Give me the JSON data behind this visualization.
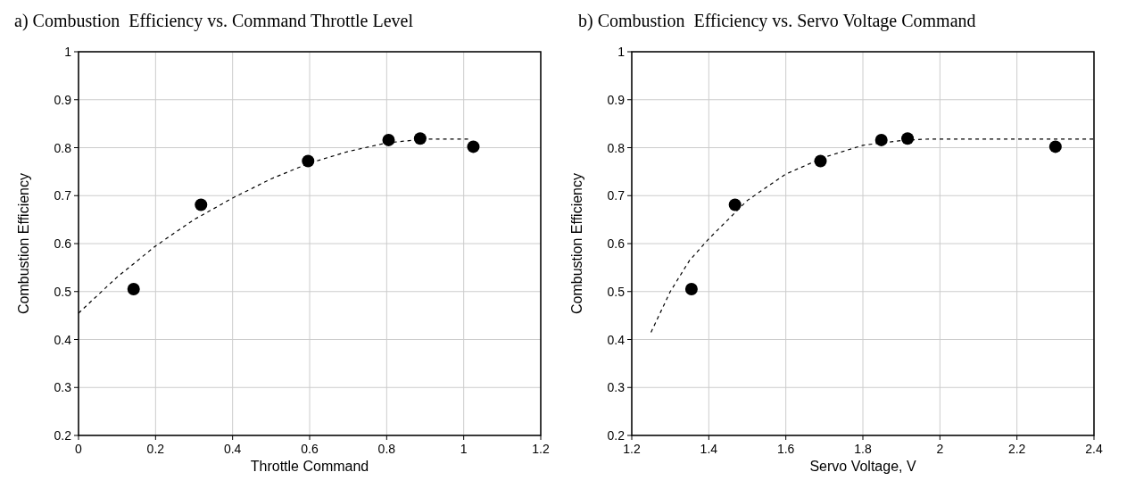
{
  "chart_data": [
    {
      "type": "scatter",
      "title": "a) Combustion  Efficiency vs. Command Throttle Level",
      "xlabel": "Throttle Command",
      "ylabel": "Combustion Efficiency",
      "xlim": [
        0,
        1.2
      ],
      "xticks": [
        0,
        0.2,
        0.4,
        0.6,
        0.8,
        1,
        1.2
      ],
      "ylim": [
        0.2,
        1
      ],
      "yticks": [
        0.2,
        0.3,
        0.4,
        0.5,
        0.6,
        0.7,
        0.8,
        0.9,
        1
      ],
      "grid": true,
      "series": [
        {
          "color": "#000000",
          "marker": "circle",
          "x": [
            0.143,
            0.318,
            0.596,
            0.805,
            0.887,
            1.025
          ],
          "values": [
            0.505,
            0.681,
            0.772,
            0.816,
            0.819,
            0.802
          ]
        },
        {
          "type": "line",
          "color": "#000000",
          "line_style": "dashed",
          "x": [
            0,
            0.1,
            0.2,
            0.3,
            0.4,
            0.5,
            0.6,
            0.7,
            0.8,
            0.9,
            1.02
          ],
          "values": [
            0.455,
            0.53,
            0.595,
            0.65,
            0.695,
            0.735,
            0.768,
            0.792,
            0.81,
            0.818,
            0.818
          ]
        }
      ]
    },
    {
      "type": "scatter",
      "title": "b) Combustion  Efficiency vs. Servo Voltage Command",
      "xlabel": "Servo Voltage, V",
      "ylabel": "Combustion Efficiency",
      "xlim": [
        1.2,
        2.4
      ],
      "xticks": [
        1.2,
        1.4,
        1.6,
        1.8,
        2,
        2.2,
        2.4
      ],
      "ylim": [
        0.2,
        1
      ],
      "yticks": [
        0.2,
        0.3,
        0.4,
        0.5,
        0.6,
        0.7,
        0.8,
        0.9,
        1
      ],
      "grid": true,
      "series": [
        {
          "color": "#000000",
          "marker": "circle",
          "x": [
            1.355,
            1.468,
            1.69,
            1.848,
            1.916,
            2.3
          ],
          "values": [
            0.505,
            0.681,
            0.772,
            0.816,
            0.819,
            0.802
          ]
        },
        {
          "type": "line",
          "color": "#000000",
          "line_style": "dashed",
          "x": [
            1.25,
            1.3,
            1.35,
            1.4,
            1.5,
            1.6,
            1.7,
            1.8,
            1.9,
            1.97,
            2.4
          ],
          "values": [
            0.415,
            0.5,
            0.565,
            0.61,
            0.69,
            0.745,
            0.78,
            0.805,
            0.815,
            0.818,
            0.818
          ]
        }
      ]
    }
  ]
}
